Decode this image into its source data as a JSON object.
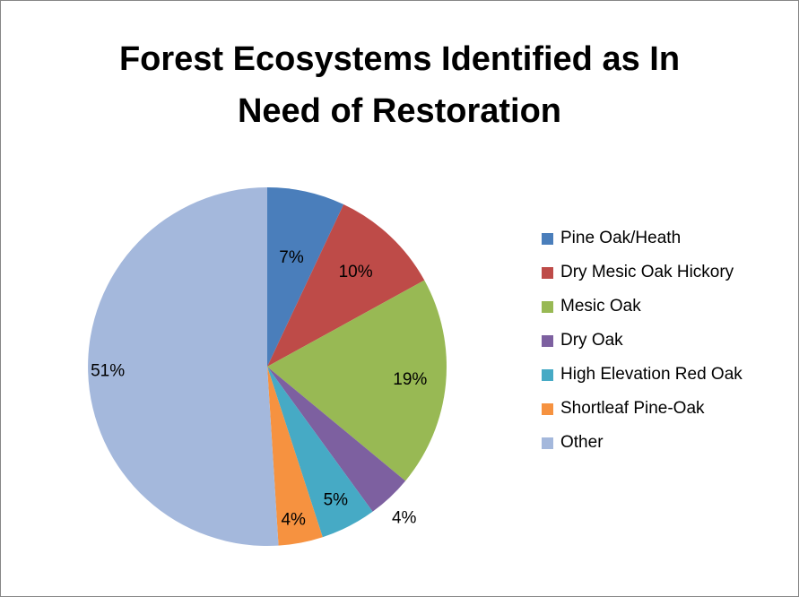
{
  "chart_data": {
    "type": "pie",
    "title_lines": [
      "Forest Ecosystems Identified as In",
      "Need of Restoration"
    ],
    "categories": [
      "Pine Oak/Heath",
      "Dry Mesic Oak Hickory",
      "Mesic Oak",
      "Dry Oak",
      "High Elevation Red Oak",
      "Shortleaf Pine-Oak",
      "Other"
    ],
    "values": [
      7,
      10,
      19,
      4,
      5,
      4,
      51
    ],
    "data_labels": [
      "7%",
      "10%",
      "19%",
      "4%",
      "5%",
      "4%",
      "51%"
    ],
    "colors": [
      "#4a7ebb",
      "#be4b48",
      "#98b954",
      "#7d60a0",
      "#46aac5",
      "#f69240",
      "#a4b8dc"
    ],
    "legend_position": "right"
  }
}
